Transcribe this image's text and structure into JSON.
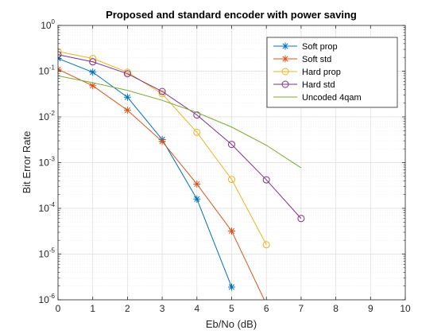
{
  "chart_data": {
    "type": "line",
    "title": "Proposed  and standard encoder with power saving",
    "xlabel": "Eb/No (dB)",
    "ylabel": "Bit Error Rate",
    "xlim": [
      0,
      10
    ],
    "ylim": [
      1e-06,
      1
    ],
    "yscale": "log",
    "grid": true,
    "minor_grid": true,
    "legend_position": "top-right",
    "x_ticks": [
      "0",
      "1",
      "2",
      "3",
      "4",
      "5",
      "6",
      "7",
      "8",
      "9",
      "10"
    ],
    "y_ticks": [
      {
        "base": "10",
        "exp": "0"
      },
      {
        "base": "10",
        "exp": "-1"
      },
      {
        "base": "10",
        "exp": "-2"
      },
      {
        "base": "10",
        "exp": "-3"
      },
      {
        "base": "10",
        "exp": "-4"
      },
      {
        "base": "10",
        "exp": "-5"
      },
      {
        "base": "10",
        "exp": "-6"
      }
    ],
    "series": [
      {
        "name": "Soft prop",
        "color": "#0072BD",
        "marker": "star",
        "x": [
          0,
          1,
          2,
          3,
          4,
          5
        ],
        "y": [
          0.19,
          0.095,
          0.027,
          0.0032,
          0.00016,
          1.9e-06
        ]
      },
      {
        "name": "Soft std",
        "color": "#D95319",
        "marker": "star",
        "x": [
          0,
          1,
          2,
          3,
          4,
          5,
          6
        ],
        "y": [
          0.11,
          0.048,
          0.014,
          0.0029,
          0.00034,
          3.2e-05,
          8e-07
        ]
      },
      {
        "name": "Hard prop",
        "color": "#EDB120",
        "marker": "circle",
        "x": [
          0,
          1,
          2,
          3,
          4,
          5,
          6
        ],
        "y": [
          0.27,
          0.19,
          0.095,
          0.032,
          0.0046,
          0.00043,
          1.6e-05
        ]
      },
      {
        "name": "Hard std",
        "color": "#7E2F8E",
        "marker": "circle",
        "x": [
          0,
          1,
          2,
          3,
          4,
          5,
          6,
          7
        ],
        "y": [
          0.23,
          0.16,
          0.088,
          0.036,
          0.011,
          0.0025,
          0.00042,
          6e-05
        ]
      },
      {
        "name": "Uncoded 4qam",
        "color": "#77AC30",
        "marker": "none",
        "x": [
          0,
          1,
          2,
          3,
          4,
          5,
          6,
          7
        ],
        "y": [
          0.079,
          0.056,
          0.038,
          0.023,
          0.0125,
          0.006,
          0.0024,
          0.00077
        ]
      }
    ]
  }
}
